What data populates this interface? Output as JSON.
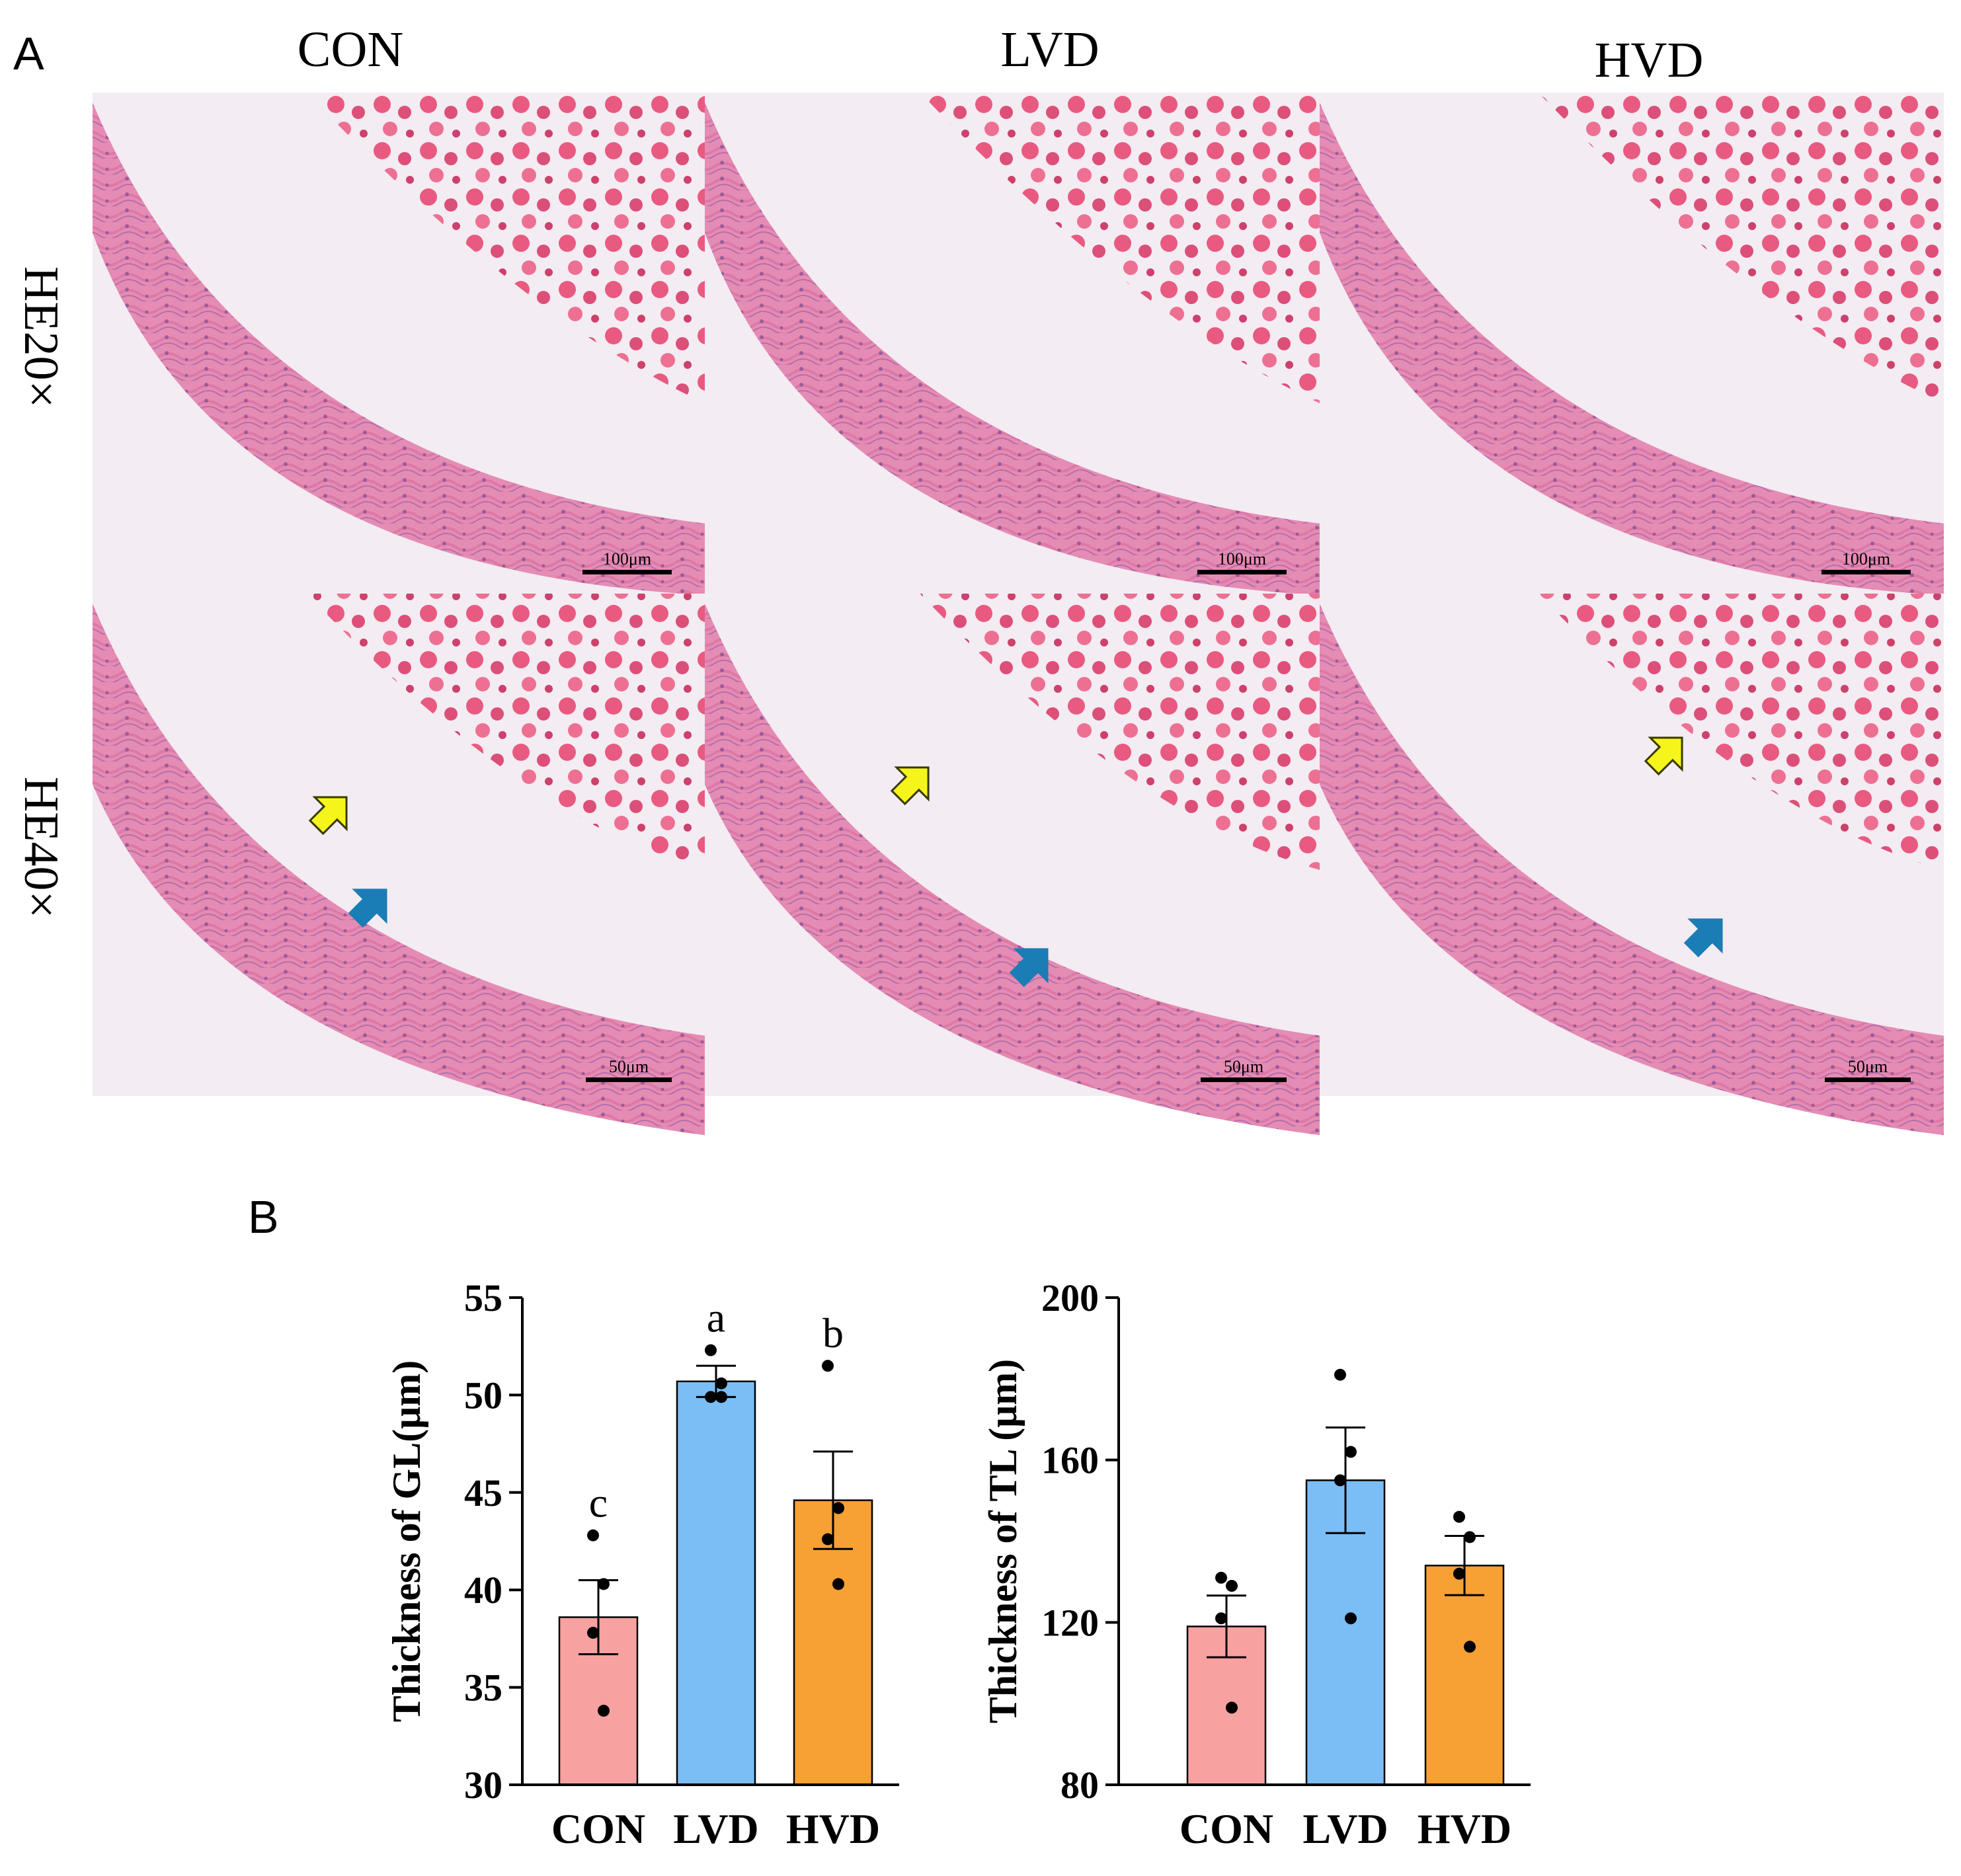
{
  "panel_a": {
    "letter": "A",
    "columns": [
      "CON",
      "LVD",
      "HVD"
    ],
    "rows": [
      "HE20×",
      "HE40×"
    ],
    "scale_bars": [
      "100μm",
      "50μm"
    ],
    "arrow_colors": {
      "yellow": "#f5f51c",
      "blue": "#1a7db5"
    }
  },
  "panel_b": {
    "letter": "B"
  },
  "colors": {
    "CON": "#f7a1a1",
    "LVD": "#7bbdf5",
    "HVD": "#f7a033"
  },
  "chart_data": [
    {
      "type": "bar",
      "title": "",
      "ylabel": "Thickness of GL(μm)",
      "xlabel": "",
      "categories": [
        "CON",
        "LVD",
        "HVD"
      ],
      "values": [
        38.6,
        50.7,
        44.6
      ],
      "sem": [
        1.9,
        0.8,
        2.5
      ],
      "points": [
        [
          42.8,
          40.3,
          37.8,
          33.8
        ],
        [
          52.3,
          50.6,
          49.9,
          49.9
        ],
        [
          51.5,
          44.2,
          42.6,
          40.3
        ]
      ],
      "letters": [
        "c",
        "a",
        "b"
      ],
      "ylim": [
        30,
        55
      ],
      "yticks": [
        30,
        35,
        40,
        45,
        50,
        55
      ]
    },
    {
      "type": "bar",
      "title": "",
      "ylabel": "Thickness of TL (μm)",
      "xlabel": "",
      "categories": [
        "CON",
        "LVD",
        "HVD"
      ],
      "values": [
        119,
        155,
        134
      ],
      "sem": [
        7.6,
        13,
        7.3
      ],
      "points": [
        [
          131,
          129,
          121,
          99
        ],
        [
          181,
          162,
          155,
          121
        ],
        [
          146,
          141,
          132,
          114
        ]
      ],
      "letters": [
        "",
        "",
        ""
      ],
      "ylim": [
        80,
        200
      ],
      "yticks": [
        80,
        120,
        160,
        200
      ]
    }
  ]
}
